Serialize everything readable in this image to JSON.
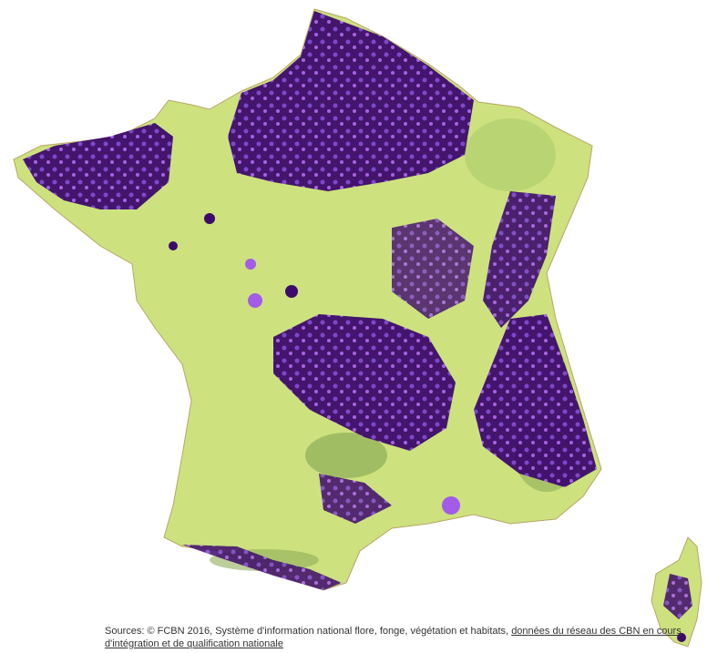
{
  "source": {
    "text": "Sources: © FCBN 2016, Système d'information national flore, fonge, végétation et habitats,",
    "link": "données du réseau des CBN en cours d'intégration et de qualification nationale"
  }
}
